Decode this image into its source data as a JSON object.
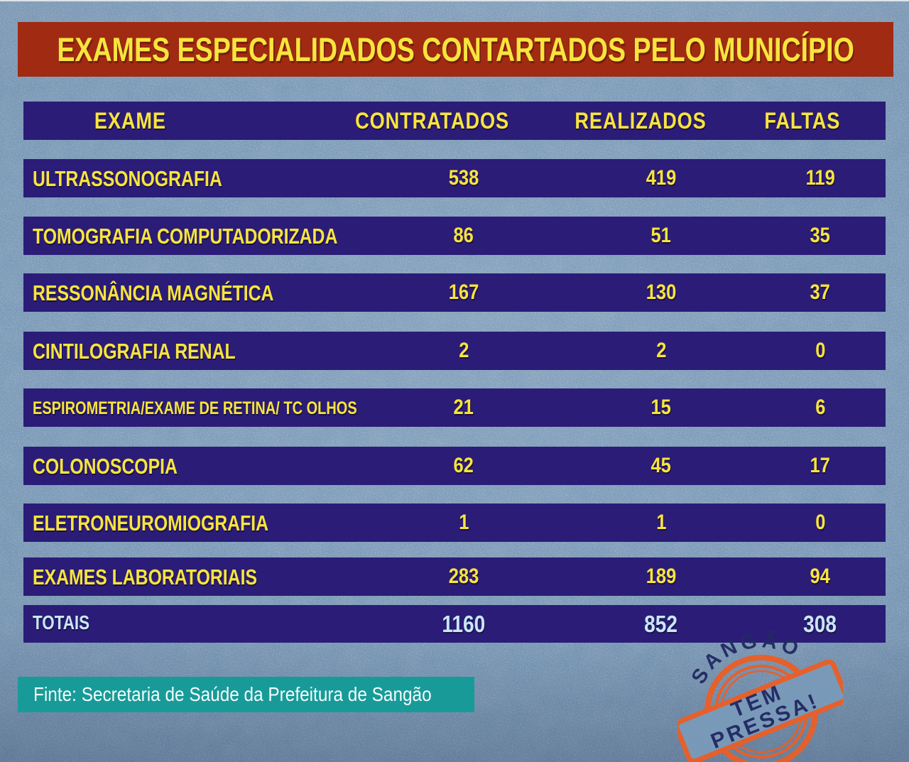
{
  "title": "EXAMES ESPECIALIDADOS CONTARTADOS PELO MUNICÍPIO",
  "table": {
    "headers": [
      "EXAME",
      "CONTRATADOS",
      "REALIZADOS",
      "FALTAS"
    ],
    "rows": [
      {
        "exame": "ULTRASSONOGRAFIA",
        "contratados": "538",
        "realizados": "419",
        "faltas": "119"
      },
      {
        "exame": "TOMOGRAFIA COMPUTADORIZADA",
        "contratados": "86",
        "realizados": "51",
        "faltas": "35"
      },
      {
        "exame": "RESSONÂNCIA MAGNÉTICA",
        "contratados": "167",
        "realizados": "130",
        "faltas": "37"
      },
      {
        "exame": "CINTILOGRAFIA RENAL",
        "contratados": "2",
        "realizados": "2",
        "faltas": "0"
      },
      {
        "exame": "ESPIROMETRIA/EXAME DE RETINA/ TC OLHOS",
        "contratados": "21",
        "realizados": "15",
        "faltas": "6"
      },
      {
        "exame": "COLONOSCOPIA",
        "contratados": "62",
        "realizados": "45",
        "faltas": "17"
      },
      {
        "exame": "ELETRONEUROMIOGRAFIA",
        "contratados": "1",
        "realizados": "1",
        "faltas": "0"
      },
      {
        "exame": "EXAMES LABORATORIAIS",
        "contratados": "283",
        "realizados": "189",
        "faltas": "94"
      }
    ],
    "totals": {
      "label": "TOTAIS",
      "contratados": "1160",
      "realizados": "852",
      "faltas": "308"
    }
  },
  "footer": {
    "source": "Finte: Secretaria de Saúde da Prefeitura de Sangão"
  },
  "stamp": {
    "city": "SANGÃO",
    "line1": "TEM",
    "line2": "PRESSA!"
  },
  "colors": {
    "background": "#7899b8",
    "banner_red": "#a02a12",
    "row_navy": "#2b1c77",
    "text_yellow": "#f8e43e",
    "totals_light_blue": "#c9e7f6",
    "source_teal": "#189b98",
    "stamp_orange": "#ea5f27",
    "stamp_navy": "#232a63"
  },
  "chart_data": {
    "type": "table",
    "title": "EXAMES ESPECIALIDADOS CONTARTADOS PELO MUNICÍPIO",
    "columns": [
      "EXAME",
      "CONTRATADOS",
      "REALIZADOS",
      "FALTAS"
    ],
    "rows": [
      [
        "ULTRASSONOGRAFIA",
        538,
        419,
        119
      ],
      [
        "TOMOGRAFIA COMPUTADORIZADA",
        86,
        51,
        35
      ],
      [
        "RESSONÂNCIA MAGNÉTICA",
        167,
        130,
        37
      ],
      [
        "CINTILOGRAFIA RENAL",
        2,
        2,
        0
      ],
      [
        "ESPIROMETRIA/EXAME DE RETINA/ TC OLHOS",
        21,
        15,
        6
      ],
      [
        "COLONOSCOPIA",
        62,
        45,
        17
      ],
      [
        "ELETRONEUROMIOGRAFIA",
        1,
        1,
        0
      ],
      [
        "EXAMES LABORATORIAIS",
        283,
        189,
        94
      ],
      [
        "TOTAIS",
        1160,
        852,
        308
      ]
    ],
    "source": "Finte: Secretaria de Saúde da Prefeitura de Sangão"
  }
}
